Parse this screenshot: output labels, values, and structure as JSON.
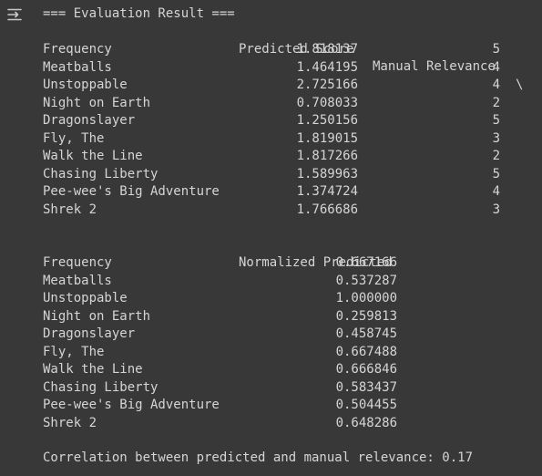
{
  "header": "=== Evaluation Result ===",
  "table1": {
    "col_predicted": "Predicted Score",
    "col_manual": "Manual Relevance",
    "continuation": "\\",
    "rows": [
      {
        "title": "Frequency",
        "predicted": "1.818137",
        "manual": "5"
      },
      {
        "title": "Meatballs",
        "predicted": "1.464195",
        "manual": "4"
      },
      {
        "title": "Unstoppable",
        "predicted": "2.725166",
        "manual": "4"
      },
      {
        "title": "Night on Earth",
        "predicted": "0.708033",
        "manual": "2"
      },
      {
        "title": "Dragonslayer",
        "predicted": "1.250156",
        "manual": "5"
      },
      {
        "title": "Fly, The",
        "predicted": "1.819015",
        "manual": "3"
      },
      {
        "title": "Walk the Line",
        "predicted": "1.817266",
        "manual": "2"
      },
      {
        "title": "Chasing Liberty",
        "predicted": "1.589963",
        "manual": "5"
      },
      {
        "title": "Pee-wee's Big Adventure",
        "predicted": "1.374724",
        "manual": "4"
      },
      {
        "title": "Shrek 2",
        "predicted": "1.766686",
        "manual": "3"
      }
    ]
  },
  "table2": {
    "col_normalized": "Normalized Predicted",
    "rows": [
      {
        "title": "Frequency",
        "normalized": "0.667166"
      },
      {
        "title": "Meatballs",
        "normalized": "0.537287"
      },
      {
        "title": "Unstoppable",
        "normalized": "1.000000"
      },
      {
        "title": "Night on Earth",
        "normalized": "0.259813"
      },
      {
        "title": "Dragonslayer",
        "normalized": "0.458745"
      },
      {
        "title": "Fly, The",
        "normalized": "0.667488"
      },
      {
        "title": "Walk the Line",
        "normalized": "0.666846"
      },
      {
        "title": "Chasing Liberty",
        "normalized": "0.583437"
      },
      {
        "title": "Pee-wee's Big Adventure",
        "normalized": "0.504455"
      },
      {
        "title": "Shrek 2",
        "normalized": "0.648286"
      }
    ]
  },
  "correlation_text": "Correlation between predicted and manual relevance: 0.17",
  "icons": {
    "output_toggle": "output-toggle-icon"
  },
  "colors": {
    "background": "#383838",
    "text": "#d5d5d5",
    "icon": "#c8c8c8"
  }
}
